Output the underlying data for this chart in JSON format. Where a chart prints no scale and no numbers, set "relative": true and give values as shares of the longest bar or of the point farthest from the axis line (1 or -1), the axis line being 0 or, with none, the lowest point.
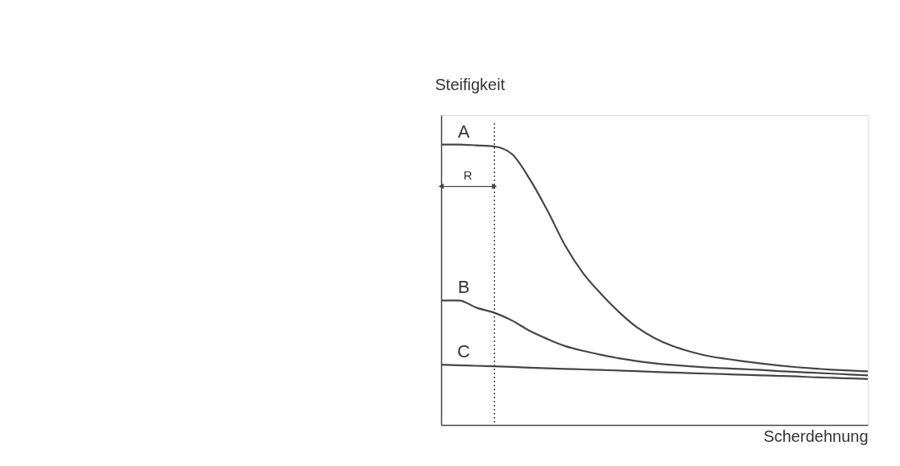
{
  "chart_data": {
    "type": "line",
    "relative": true,
    "xlabel": "Scherdehnung",
    "ylabel": "Steifigkeit",
    "tick_labels": false,
    "grid": false,
    "marker": "none",
    "line_style": "solid",
    "categories": [
      null,
      null,
      null,
      null,
      null,
      null,
      null,
      null,
      null,
      null,
      null,
      null,
      null,
      null,
      null,
      null,
      null,
      null,
      null,
      null,
      null,
      null,
      null,
      null,
      null
    ],
    "series": [
      {
        "name": "A",
        "color": "#444444",
        "values": [
          1,
          1,
          0.997,
          0.993,
          0.965,
          0.875,
          0.762,
          0.637,
          0.54,
          0.467,
          0.403,
          0.349,
          0.31,
          0.282,
          0.262,
          0.246,
          0.236,
          0.227,
          0.219,
          0.212,
          0.206,
          0.201,
          0.197,
          0.194,
          0.191
        ]
      },
      {
        "name": "B",
        "color": "#444444",
        "values": [
          0.444,
          0.444,
          0.418,
          0.4,
          0.372,
          0.335,
          0.306,
          0.281,
          0.264,
          0.25,
          0.238,
          0.228,
          0.22,
          0.214,
          0.209,
          0.205,
          0.202,
          0.199,
          0.196,
          0.192,
          0.189,
          0.186,
          0.183,
          0.18,
          0.177
        ]
      },
      {
        "name": "C",
        "color": "#444444",
        "values": [
          0.215,
          0.213,
          0.211,
          0.209,
          0.207,
          0.204,
          0.202,
          0.2,
          0.198,
          0.196,
          0.194,
          0.192,
          0.189,
          0.187,
          0.185,
          0.183,
          0.181,
          0.179,
          0.177,
          0.175,
          0.173,
          0.17,
          0.168,
          0.166,
          0.164
        ]
      }
    ],
    "annotations": [
      "R"
    ]
  }
}
